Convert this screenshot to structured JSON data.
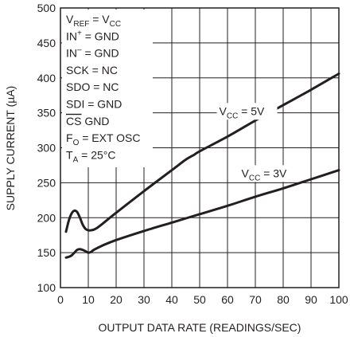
{
  "chart_data": {
    "type": "line",
    "xlabel": "OUTPUT DATA RATE (READINGS/SEC)",
    "ylabel": "SUPPLY CURRENT (µA)",
    "xlim": [
      0,
      100
    ],
    "ylim": [
      100,
      500
    ],
    "x_ticks": [
      0,
      10,
      20,
      30,
      40,
      50,
      60,
      70,
      80,
      90,
      100
    ],
    "y_ticks": [
      100,
      150,
      200,
      250,
      300,
      350,
      400,
      450,
      500
    ],
    "grid": true,
    "series": [
      {
        "name": "VCC = 5V",
        "x": [
          2,
          3,
          4,
          5,
          6,
          7,
          8,
          9,
          10,
          11,
          12,
          13,
          15,
          20,
          30,
          40,
          45,
          48,
          50,
          60,
          70,
          80,
          90,
          100
        ],
        "y": [
          180,
          196,
          206,
          210,
          208,
          200,
          190,
          184,
          182,
          182,
          183,
          185,
          191,
          207,
          238,
          268,
          283,
          290,
          295,
          316,
          339,
          361,
          383,
          406
        ]
      },
      {
        "name": "VCC = 3V",
        "x": [
          2,
          3,
          4,
          5,
          6,
          7,
          8,
          9,
          10,
          11,
          12,
          15,
          20,
          30,
          40,
          50,
          60,
          70,
          80,
          90,
          100
        ],
        "y": [
          143,
          144,
          146,
          150,
          154,
          155,
          154,
          152,
          150,
          151,
          154,
          160,
          168,
          181,
          193,
          205,
          217,
          230,
          242,
          255,
          268
        ]
      }
    ],
    "series_labels": [
      {
        "text_main": "V",
        "text_sub": "CC",
        "text_rest": " = 5V",
        "at_x": 57,
        "at_y": 347
      },
      {
        "text_main": "V",
        "text_sub": "CC",
        "text_rest": " = 3V",
        "at_x": 65,
        "at_y": 258
      }
    ],
    "annotations": [
      {
        "parts": [
          [
            "V",
            ""
          ],
          [
            "REF",
            "sub"
          ],
          [
            " = V",
            ""
          ],
          [
            "CC",
            "sub"
          ]
        ]
      },
      {
        "parts": [
          [
            "IN",
            ""
          ],
          [
            "+",
            "sup"
          ],
          [
            " = GND",
            ""
          ]
        ]
      },
      {
        "parts": [
          [
            "IN",
            ""
          ],
          [
            "–",
            "sup"
          ],
          [
            " = GND",
            ""
          ]
        ]
      },
      {
        "parts": [
          [
            "SCK = NC",
            ""
          ]
        ]
      },
      {
        "parts": [
          [
            "SDO = NC",
            ""
          ]
        ]
      },
      {
        "parts": [
          [
            "SDI = GND",
            ""
          ]
        ]
      },
      {
        "parts": [
          [
            "CS",
            "over"
          ],
          [
            " GND",
            ""
          ]
        ]
      },
      {
        "parts": [
          [
            "F",
            ""
          ],
          [
            "O",
            "sub"
          ],
          [
            " = EXT OSC",
            ""
          ]
        ]
      },
      {
        "parts": [
          [
            "T",
            ""
          ],
          [
            "A",
            "sub"
          ],
          [
            " = 25°C",
            ""
          ]
        ]
      }
    ]
  }
}
